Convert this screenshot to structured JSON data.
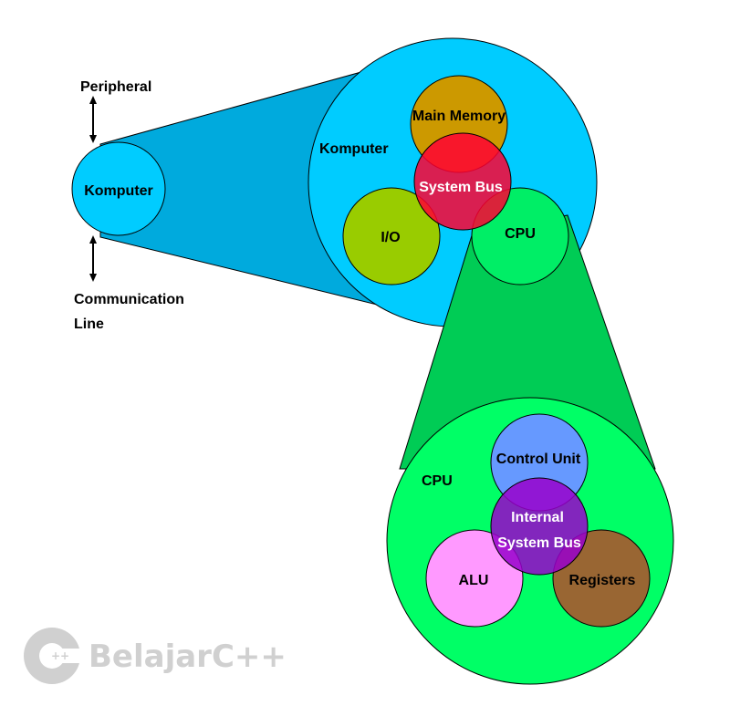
{
  "labels": {
    "peripheral": "Peripheral",
    "communication_1": "Communication",
    "communication_2": "Line",
    "komputer_small": "Komputer",
    "komputer_big": "Komputer",
    "main_memory": "Main Memory",
    "system_bus": "System Bus",
    "io": "I/O",
    "cpu_small": "CPU",
    "cpu_big": "CPU",
    "control_unit": "Control Unit",
    "internal_1": "Internal",
    "internal_2": "System Bus",
    "alu": "ALU",
    "registers": "Registers"
  },
  "logo": {
    "text": "BelajarC++",
    "mark": "++"
  },
  "colors": {
    "computer": "#00ccff",
    "computer_cone": "#00aadd",
    "main_memory": "#cc9900",
    "system_bus": "#ff0033",
    "io": "#99cc00",
    "cpu_small": "#00ee66",
    "cpu_big": "#00ff66",
    "cpu_cone": "#00cc55",
    "control_unit": "#6699ff",
    "internal_bus": "#9900cc",
    "alu": "#ff99ff",
    "registers": "#996633",
    "logo": "#d0d0d0"
  }
}
